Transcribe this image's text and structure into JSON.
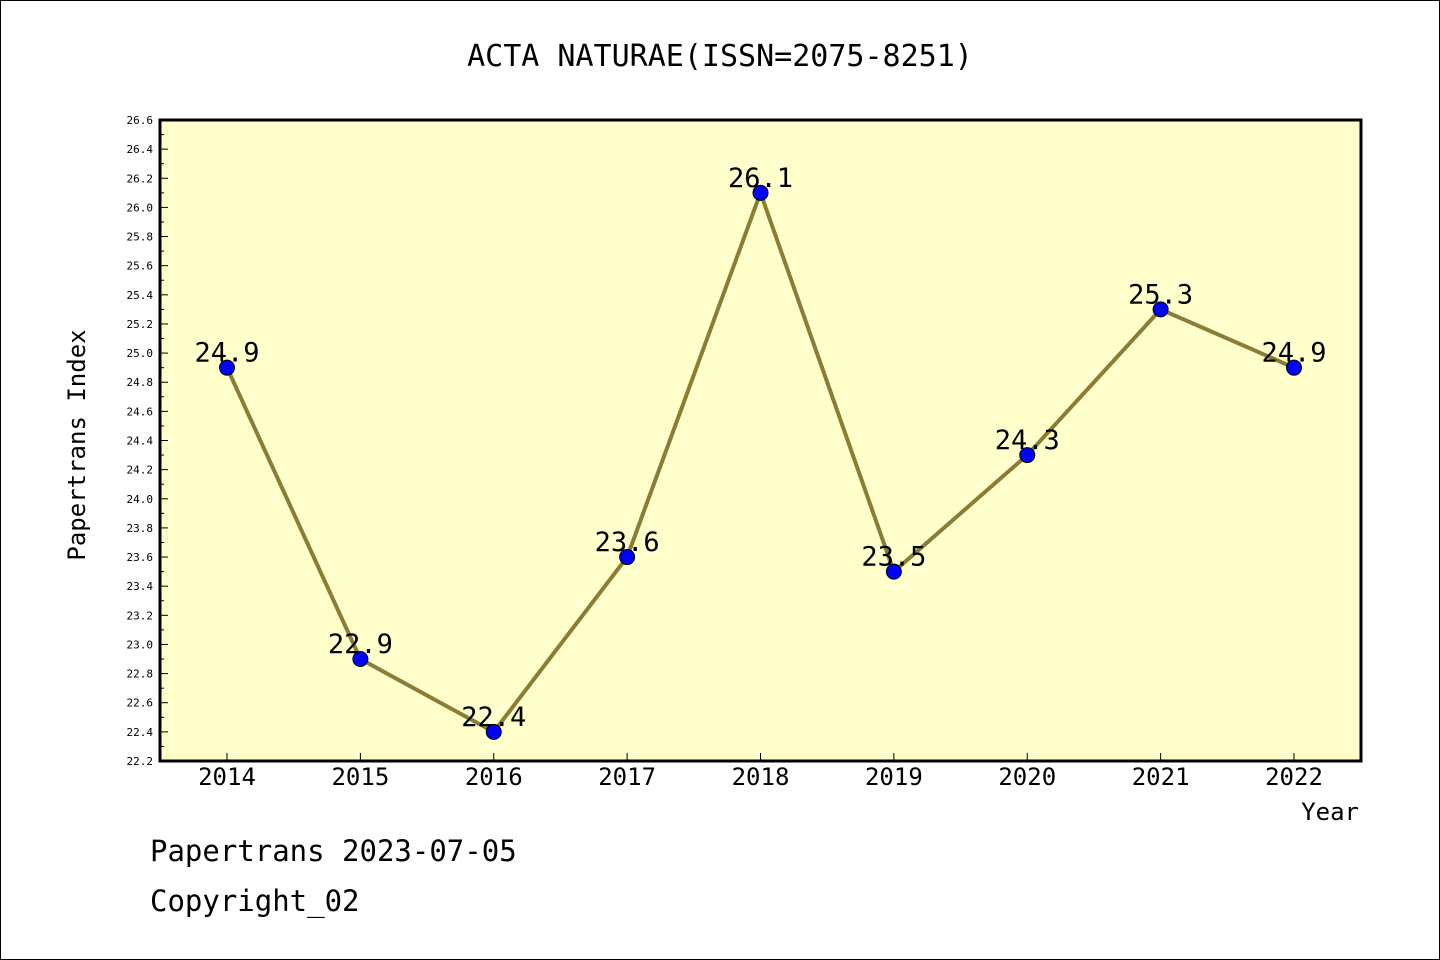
{
  "chart_data": {
    "type": "line",
    "title": "ACTA NATURAE(ISSN=2075-8251)",
    "xlabel": "Year",
    "ylabel": "Papertrans Index",
    "categories": [
      "2014",
      "2015",
      "2016",
      "2017",
      "2018",
      "2019",
      "2020",
      "2021",
      "2022"
    ],
    "series": [
      {
        "values": [
          24.9,
          22.9,
          22.4,
          23.6,
          26.1,
          23.5,
          24.3,
          25.3,
          24.9
        ],
        "data_labels": [
          "24.9",
          "22.9",
          "22.4",
          "23.6",
          "26.1",
          "23.5",
          "24.3",
          "25.3",
          "24.9"
        ]
      }
    ],
    "ylim": [
      22.2,
      26.6
    ],
    "yticks": [
      "22.2",
      "22.4",
      "22.6",
      "22.8",
      "23.0",
      "23.2",
      "23.4",
      "23.6",
      "23.8",
      "24.0",
      "24.2",
      "24.4",
      "24.6",
      "24.8",
      "25.0",
      "25.2",
      "25.4",
      "25.6",
      "25.8",
      "26.0",
      "26.2",
      "26.4",
      "26.6"
    ],
    "grid": false,
    "colors": {
      "plot_background": "#ffffcc",
      "line": "#8b7d36",
      "marker": "#0000ff"
    }
  },
  "footer": {
    "line1": "Papertrans 2023-07-05",
    "line2": "Copyright_02"
  }
}
